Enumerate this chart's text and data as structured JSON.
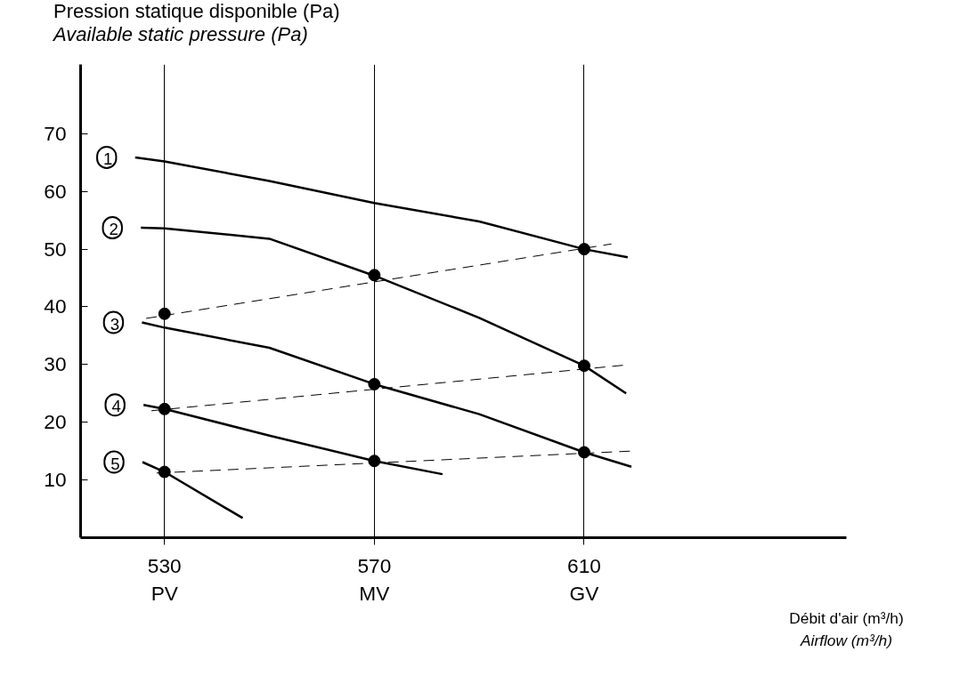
{
  "chart_data": {
    "type": "line",
    "ylabel": "Pression statique disponible (Pa)\nAvailable static pressure (Pa)",
    "xlabel": "Débit d'air (m³/h)\nAirflow (m³/h)",
    "xlim": [
      514,
      660
    ],
    "ylim": [
      0,
      82
    ],
    "xticks": [
      {
        "value": 530,
        "label": "530\nPV"
      },
      {
        "value": 570,
        "label": "570\nMV"
      },
      {
        "value": 610,
        "label": "610\nGV"
      }
    ],
    "yticks": [
      10,
      20,
      30,
      40,
      50,
      60,
      70
    ],
    "grid": "x",
    "legend": false,
    "marker": "none",
    "line_style": "solid",
    "series": [
      {
        "name": "1",
        "color": "#000000",
        "x": [
          524.4,
          530,
          550,
          570,
          590,
          610,
          618.3
        ],
        "values": [
          65.9,
          65.2,
          61.8,
          58.0,
          54.8,
          50.0,
          48.6
        ]
      },
      {
        "name": "2",
        "color": "#000000",
        "x": [
          525.5,
          530,
          550,
          570,
          590,
          610,
          618
        ],
        "values": [
          53.7,
          53.6,
          51.8,
          45.4,
          38.1,
          29.8,
          25.0
        ]
      },
      {
        "name": "3",
        "color": "#000000",
        "x": [
          525.7,
          530,
          550,
          570,
          590,
          610,
          619
        ],
        "values": [
          37.3,
          36.4,
          32.9,
          26.6,
          21.4,
          14.8,
          12.3
        ]
      },
      {
        "name": "4",
        "color": "#000000",
        "x": [
          526,
          530,
          550,
          570,
          583
        ],
        "values": [
          23.0,
          22.3,
          17.7,
          13.3,
          11.0
        ]
      },
      {
        "name": "5",
        "color": "#000000",
        "x": [
          525.8,
          530,
          544.9
        ],
        "values": [
          13.1,
          11.4,
          3.4
        ]
      },
      {
        "color": "#000000",
        "line_style": "dashed",
        "x": [
          526.5,
          615.2
        ],
        "values": [
          38.0,
          50.9
        ]
      },
      {
        "color": "#000000",
        "line_style": "dashed",
        "x": [
          527.5,
          617.7
        ],
        "values": [
          22.0,
          29.9
        ]
      },
      {
        "color": "#000000",
        "line_style": "dashed",
        "x": [
          528.5,
          618.8
        ],
        "values": [
          11.2,
          15.0
        ]
      },
      {
        "type": "scatter",
        "marker": "circle",
        "color": "#000000",
        "x": [
          530,
          570,
          610,
          610,
          570,
          530,
          570,
          610,
          530
        ],
        "values": [
          38.8,
          45.5,
          50.0,
          29.8,
          26.6,
          22.3,
          13.3,
          14.8,
          11.4
        ]
      }
    ]
  }
}
